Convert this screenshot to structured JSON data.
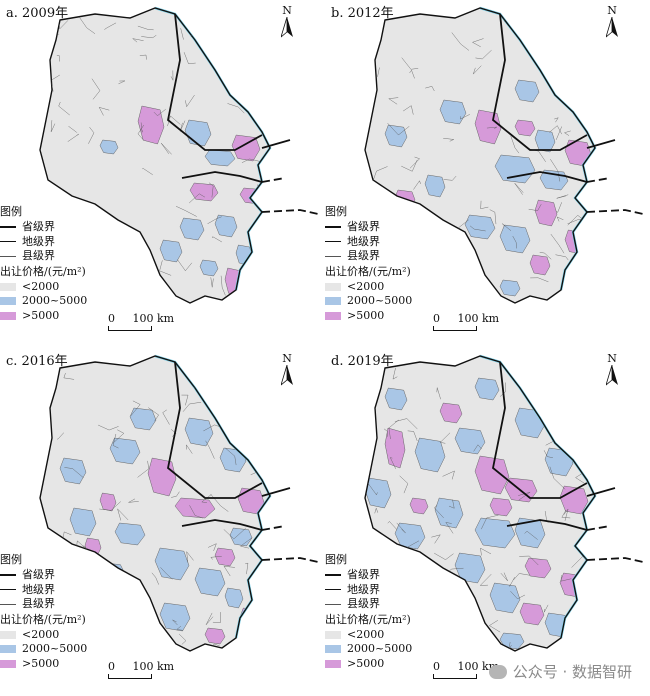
{
  "panels": [
    {
      "title": "a. 2009年",
      "highlight": 0
    },
    {
      "title": "b. 2012年",
      "highlight": 1
    },
    {
      "title": "c. 2016年",
      "highlight": 2
    },
    {
      "title": "d. 2019年",
      "highlight": 3
    }
  ],
  "north_label": "N",
  "legend": {
    "title": "图例",
    "province": "省级界",
    "prefecture": "地级界",
    "county": "县级界",
    "price_title": "出让价格/(元/m²)",
    "classes": [
      "<2000",
      "2000~5000",
      ">5000"
    ]
  },
  "scale": {
    "label": "0     100 km"
  },
  "colors": {
    "low": "#e6e6e6",
    "mid": "#a9c6e6",
    "high": "#d69ad9",
    "coast": "#7fd3ea"
  },
  "watermark": "公众号 · 数据智研"
}
